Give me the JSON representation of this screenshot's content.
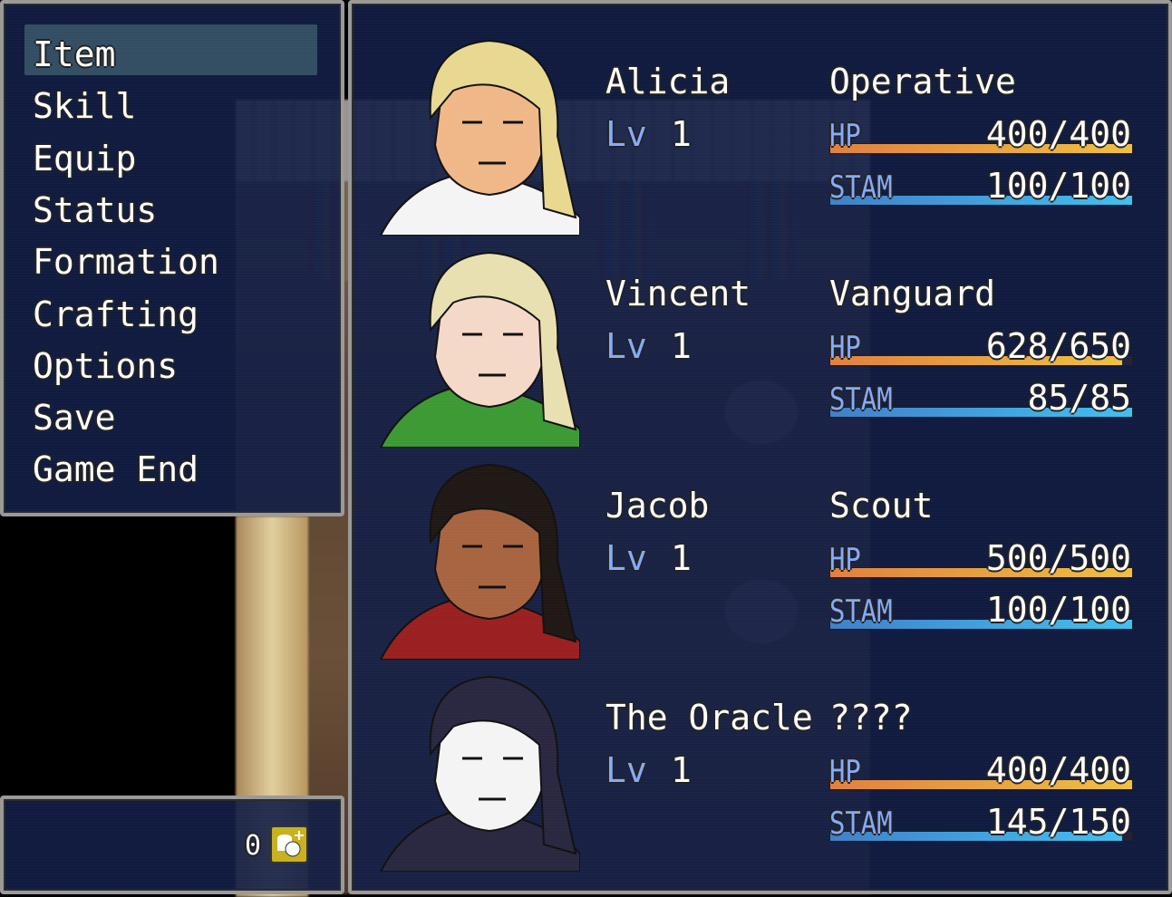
{
  "menu": {
    "items": [
      "Item",
      "Skill",
      "Equip",
      "Status",
      "Formation",
      "Crafting",
      "Options",
      "Save",
      "Game End"
    ],
    "selected_index": 0
  },
  "gold": {
    "amount": "0",
    "icon": "gold-coins-icon"
  },
  "labels": {
    "level": "Lv",
    "hp": "HP",
    "stam": "STAM"
  },
  "colors": {
    "window": "#121e46",
    "system_text": "#84aaff",
    "hp_gauge": [
      "#e0803e",
      "#f0c040"
    ],
    "stam_gauge": [
      "#4080c8",
      "#40c0f0"
    ],
    "cursor": "#4f7882"
  },
  "party": [
    {
      "name": "Alicia",
      "class": "Operative",
      "level": "1",
      "hp": "400/400",
      "hp_pct": 100,
      "stam": "100/100",
      "stam_pct": 100,
      "skin": "#f0b888",
      "hair": "#e8d890",
      "cloth": "#f4f4f4"
    },
    {
      "name": "Vincent",
      "class": "Vanguard",
      "level": "1",
      "hp": "628/650",
      "hp_pct": 96.6,
      "stam": "85/85",
      "stam_pct": 100,
      "skin": "#f4d8c8",
      "hair": "#e8e0b0",
      "cloth": "#3c9a34"
    },
    {
      "name": "Jacob",
      "class": "Scout",
      "level": "1",
      "hp": "500/500",
      "hp_pct": 100,
      "stam": "100/100",
      "stam_pct": 100,
      "skin": "#a86440",
      "hair": "#201814",
      "cloth": "#9a2020"
    },
    {
      "name": "The Oracle",
      "class": "????",
      "level": "1",
      "hp": "400/400",
      "hp_pct": 100,
      "stam": "145/150",
      "stam_pct": 96.7,
      "skin": "#f4f4f4",
      "hair": "#2a2840",
      "cloth": "#2a2840"
    }
  ]
}
